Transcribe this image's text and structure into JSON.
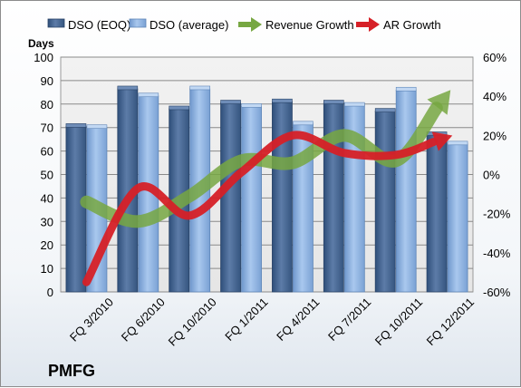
{
  "company_label": "PMFG",
  "chart_data": {
    "type": "bar",
    "categories": [
      "FQ 3/2010",
      "FQ 6/2010",
      "FQ 10/2010",
      "FQ 1/2011",
      "FQ 4/2011",
      "FQ 7/2011",
      "FQ 10/2011",
      "FQ 12/2011"
    ],
    "series": [
      {
        "name": "DSO (EOQ)",
        "type": "bar",
        "axis": "left",
        "color": "#4a6792",
        "values": [
          70.5,
          86.5,
          78,
          80.5,
          81,
          80.5,
          77,
          67
        ]
      },
      {
        "name": "DSO (average)",
        "type": "bar",
        "axis": "left",
        "color": "#8fb4e3",
        "values": [
          70,
          83.5,
          86.5,
          79,
          71.5,
          79.5,
          86,
          63
        ]
      },
      {
        "name": "Revenue Growth",
        "type": "line",
        "axis": "right",
        "color": "#77a742",
        "values": [
          -14,
          -24,
          -11,
          7,
          6,
          20,
          7,
          41
        ]
      },
      {
        "name": "AR Growth",
        "type": "line",
        "axis": "right",
        "color": "#d62027",
        "values": [
          -55,
          -7,
          -21,
          1,
          20,
          11,
          10,
          19
        ]
      }
    ],
    "ylabel": "Days",
    "ylim": [
      0,
      100
    ],
    "yticks": [
      "0",
      "10",
      "20",
      "30",
      "40",
      "50",
      "60",
      "70",
      "80",
      "90",
      "100"
    ],
    "y2lim": [
      -60,
      60
    ],
    "y2ticks": [
      "-60%",
      "-40%",
      "-20%",
      "0%",
      "20%",
      "40%",
      "60%"
    ],
    "grid": true,
    "legend": "top"
  }
}
